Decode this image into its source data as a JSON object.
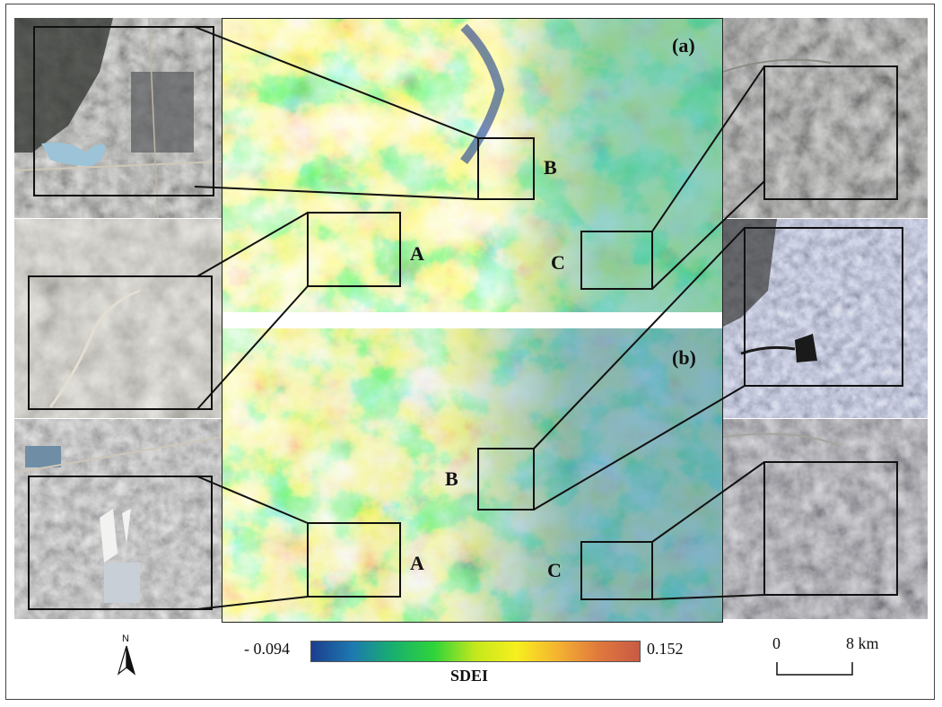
{
  "figure": {
    "panels": [
      {
        "id": "a",
        "label": "(a)"
      },
      {
        "id": "b",
        "label": "(b)"
      }
    ],
    "zones": [
      {
        "panel": "a",
        "label": "A"
      },
      {
        "panel": "a",
        "label": "B"
      },
      {
        "panel": "a",
        "label": "C"
      },
      {
        "panel": "b",
        "label": "A"
      },
      {
        "panel": "b",
        "label": "B"
      },
      {
        "panel": "b",
        "label": "C"
      }
    ],
    "legend": {
      "title": "SDEI",
      "min_label": "- 0.094",
      "max_label": "0.152",
      "min_value": -0.094,
      "max_value": 0.152,
      "colors": [
        "#1c3e8f",
        "#1d79b0",
        "#19b06e",
        "#2fd43a",
        "#c4e81c",
        "#f7ef1e",
        "#f4b330",
        "#e0793c",
        "#c85a45"
      ]
    },
    "scale_bar": {
      "start_label": "0",
      "end_label": "8 km"
    },
    "north_arrow": {
      "label": "N",
      "icon": "north-arrow-icon"
    },
    "insets": [
      {
        "name": "inset-a-b-quarry",
        "target": "panel-a zone B"
      },
      {
        "name": "inset-a-a-farmland",
        "target": "panel-a zone A"
      },
      {
        "name": "inset-b-a-industrial",
        "target": "panel-b zone A"
      },
      {
        "name": "inset-a-c-mountain",
        "target": "panel-a zone C"
      },
      {
        "name": "inset-b-b-town",
        "target": "panel-b zone B"
      },
      {
        "name": "inset-b-c-mountain",
        "target": "panel-b zone C"
      }
    ]
  }
}
